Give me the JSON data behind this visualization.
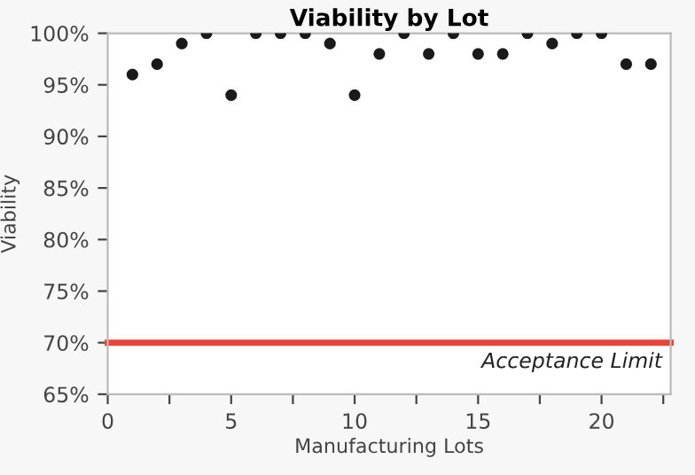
{
  "chart_data": {
    "type": "scatter",
    "title": "Viability by Lot",
    "xlabel": "Manufacturing Lots",
    "ylabel": "Viability",
    "x": [
      1,
      2,
      3,
      4,
      5,
      6,
      7,
      8,
      9,
      10,
      11,
      12,
      13,
      14,
      15,
      16,
      17,
      18,
      19,
      20,
      21,
      22
    ],
    "values": [
      96,
      97,
      99,
      100,
      94,
      100,
      100,
      100,
      99,
      94,
      98,
      100,
      98,
      100,
      98,
      98,
      100,
      99,
      100,
      100,
      97,
      97
    ],
    "color": "#1a1a1a",
    "marker": "circle",
    "xlim": [
      0,
      22.8
    ],
    "xticks": [
      0,
      {
        "value": 2.5,
        "label": null
      },
      5,
      {
        "value": 7.5,
        "label": null
      },
      10,
      {
        "value": 12.5,
        "label": null
      },
      15,
      {
        "value": 17.5,
        "label": null
      },
      20,
      {
        "value": 22.5,
        "label": null
      }
    ],
    "ylim": [
      65,
      100
    ],
    "yticks": [
      {
        "value": 65,
        "label": "65%"
      },
      {
        "value": 70,
        "label": "70%"
      },
      {
        "value": 75,
        "label": "75%"
      },
      {
        "value": 80,
        "label": "80%"
      },
      {
        "value": 85,
        "label": "85%"
      },
      {
        "value": 90,
        "label": "90%"
      },
      {
        "value": 95,
        "label": "95%"
      },
      {
        "value": 100,
        "label": "100%"
      }
    ],
    "ref_lines": [
      {
        "axis": "y",
        "value": 70,
        "label": "Acceptance Limit",
        "color": "#e8443a"
      }
    ],
    "grid": false,
    "legend": false
  }
}
